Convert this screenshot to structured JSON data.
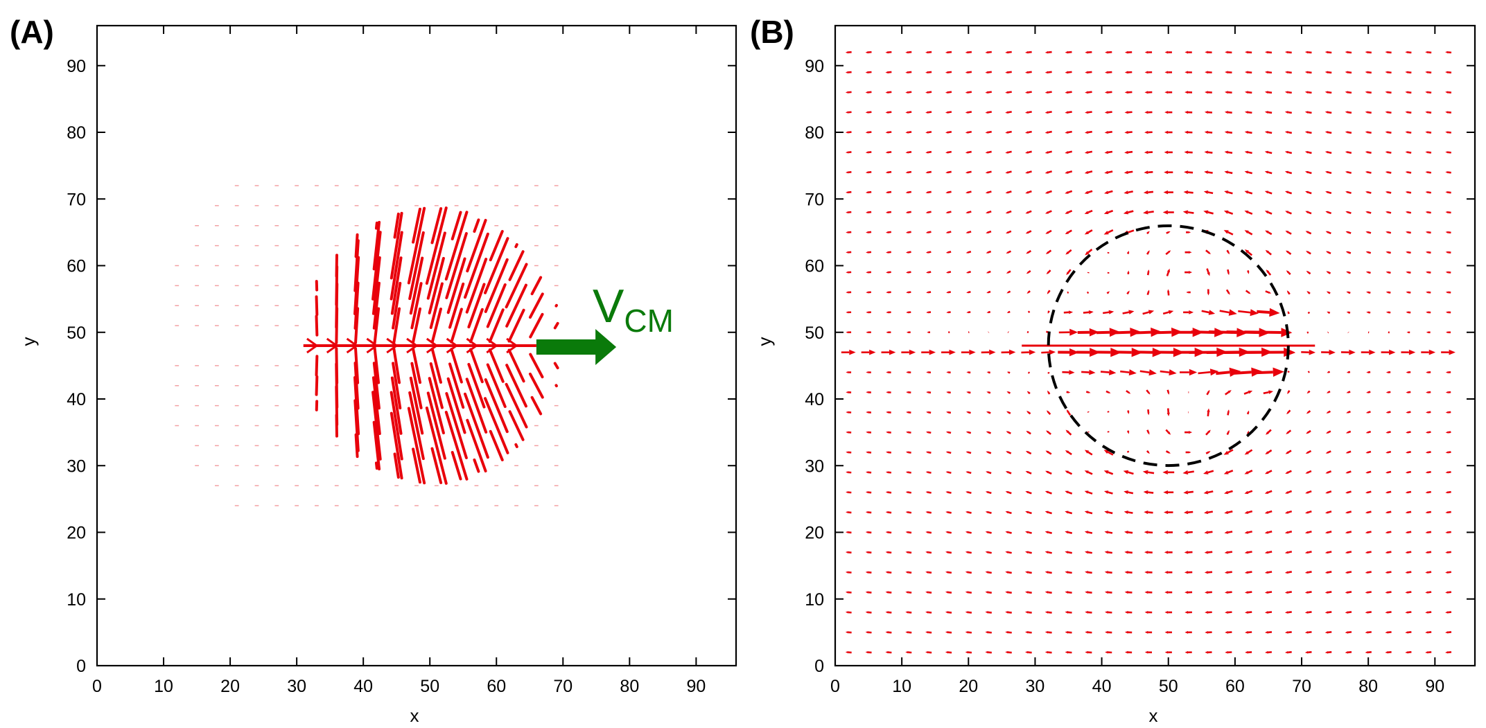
{
  "figure": {
    "panel_a_label": "(A)",
    "panel_b_label": "(B)"
  },
  "colors": {
    "arrows": "#e8000b",
    "vcm": "#0a7a0a",
    "circle": "#000000",
    "axes": "#000000"
  },
  "chart_data": [
    {
      "type": "quiver",
      "panel": "(A)",
      "title": "",
      "xlabel": "x",
      "ylabel": "y",
      "xlim": [
        0,
        96
      ],
      "ylim": [
        0,
        96
      ],
      "xticks": [
        0,
        10,
        20,
        30,
        40,
        50,
        60,
        70,
        80,
        90
      ],
      "yticks": [
        0,
        10,
        20,
        30,
        40,
        50,
        60,
        70,
        80,
        90
      ],
      "field": {
        "description": "Velocity field of a self-propelled droplet: strong fan-shaped vectors inside the drop pointing from the central axis outward and forward, negligible vectors outside.",
        "grid_x": [
          3,
          6,
          9,
          12,
          15,
          18,
          21,
          24,
          27,
          30,
          33,
          36,
          39,
          42,
          45,
          48,
          51,
          54,
          57,
          60,
          63,
          66,
          69
        ],
        "grid_y": [
          24,
          27,
          30,
          33,
          36,
          39,
          42,
          45,
          48,
          51,
          54,
          57,
          60,
          63,
          66,
          69,
          72
        ],
        "droplet_center": [
          50,
          48
        ],
        "droplet_radius": 18,
        "axis_y": 48,
        "axis_x_range": [
          31,
          66
        ]
      },
      "annotation": {
        "main": "V",
        "subscript": "CM",
        "arrow_from": [
          66,
          48
        ],
        "arrow_to": [
          78,
          48
        ]
      }
    },
    {
      "type": "quiver",
      "panel": "(B)",
      "title": "",
      "xlabel": "x",
      "ylabel": "y",
      "xlim": [
        0,
        96
      ],
      "ylim": [
        0,
        96
      ],
      "xticks": [
        0,
        10,
        20,
        30,
        40,
        50,
        60,
        70,
        80,
        90
      ],
      "yticks": [
        0,
        10,
        20,
        30,
        40,
        50,
        60,
        70,
        80,
        90
      ],
      "field": {
        "description": "Flow field around the moving droplet: uniform backward flow far away, strong forward flow along the axis and a pair of counter-rotating vortices inside the droplet.",
        "grid_start": 2,
        "grid_step": 3,
        "grid_count": 31,
        "far_field_velocity": [
          -0.55,
          0
        ],
        "droplet_center": [
          50,
          48
        ],
        "droplet_radius": 18,
        "vortices": [
          [
            53,
            58,
            -1
          ],
          [
            53,
            38,
            1
          ]
        ]
      },
      "circle": {
        "center": [
          50,
          48
        ],
        "radius": 18,
        "style": "dashed"
      }
    }
  ]
}
